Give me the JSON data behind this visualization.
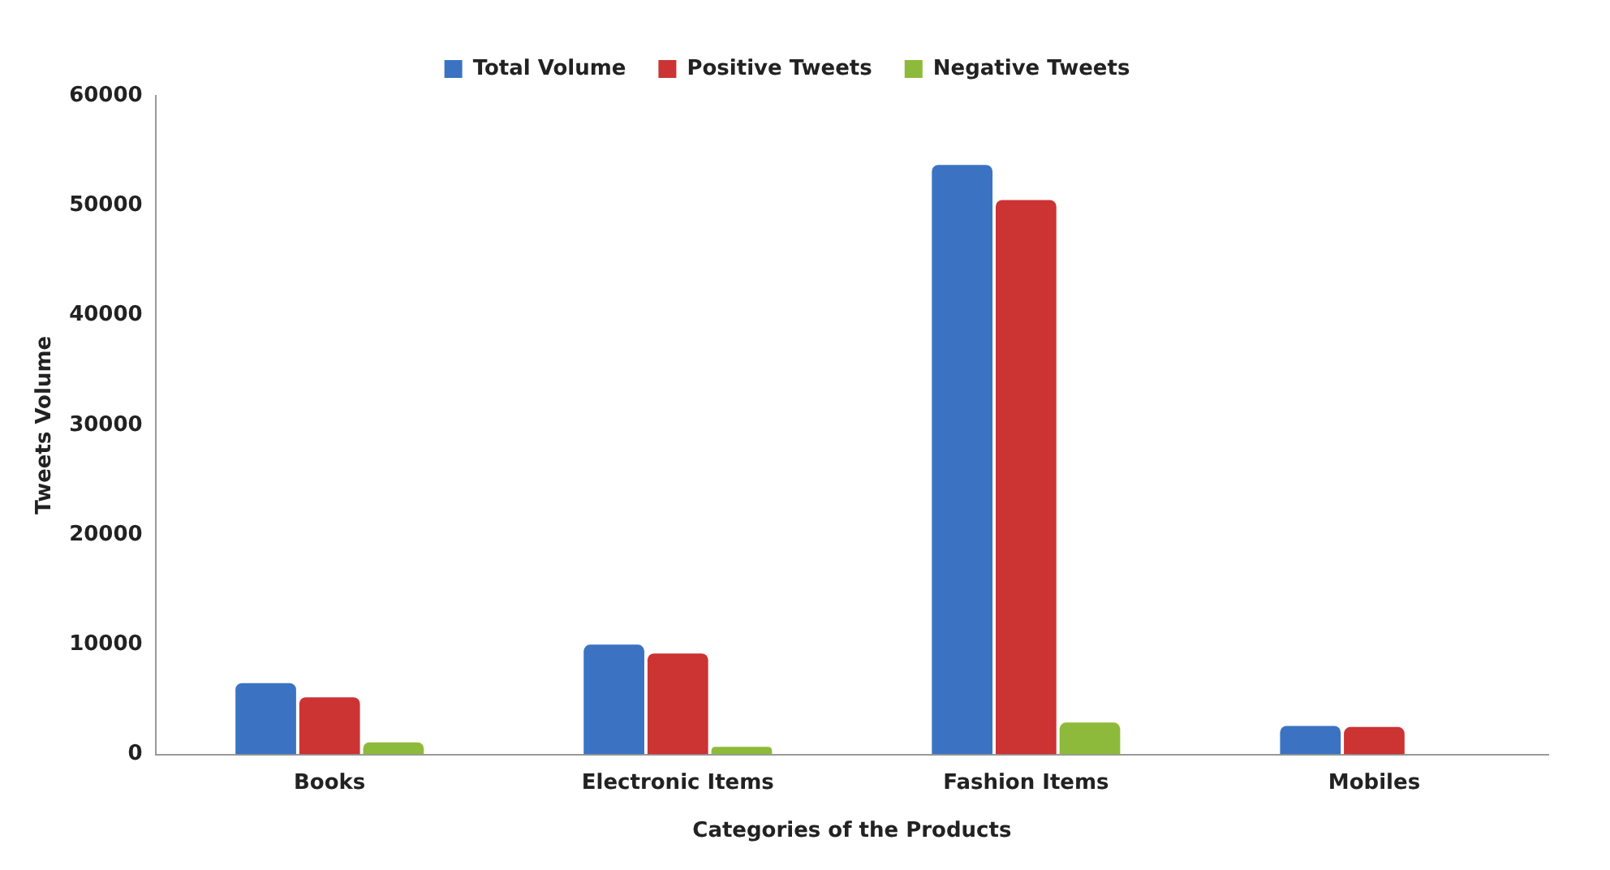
{
  "chart_data": {
    "type": "bar",
    "xlabel": "Categories of the Products",
    "ylabel": "Tweets Volume",
    "categories": [
      "Books",
      "Electronic Items",
      "Fashion Items",
      "Mobiles"
    ],
    "series": [
      {
        "name": "Total Volume",
        "color": "#3b73c2",
        "values": [
          6500,
          10000,
          53700,
          2600
        ]
      },
      {
        "name": "Positive Tweets",
        "color": "#cc3333",
        "values": [
          5200,
          9200,
          50500,
          2500
        ]
      },
      {
        "name": "Negative Tweets",
        "color": "#8dba3a",
        "values": [
          1100,
          700,
          2900,
          0
        ]
      }
    ],
    "ylim": [
      0,
      60000
    ],
    "yticks": [
      0,
      10000,
      20000,
      30000,
      40000,
      50000,
      60000
    ],
    "grid": false,
    "legend": "top"
  }
}
